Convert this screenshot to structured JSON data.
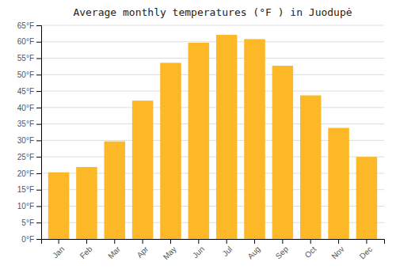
{
  "chart_data": {
    "type": "bar",
    "title": "Average monthly temperatures (°F ) in Juodupė",
    "categories": [
      "Jan",
      "Feb",
      "Mar",
      "Apr",
      "May",
      "Jun",
      "Jul",
      "Aug",
      "Sep",
      "Oct",
      "Nov",
      "Dec"
    ],
    "values": [
      20.3,
      21.9,
      29.7,
      42.1,
      53.6,
      59.7,
      62.1,
      60.8,
      52.7,
      43.7,
      33.8,
      25.0
    ],
    "color": "#FDB827",
    "ylim": [
      0,
      65
    ],
    "yticks": [
      {
        "value": 0,
        "label": "0°F"
      },
      {
        "value": 5,
        "label": "5°F"
      },
      {
        "value": 10,
        "label": "10°F"
      },
      {
        "value": 15,
        "label": "15°F"
      },
      {
        "value": 20,
        "label": "20°F"
      },
      {
        "value": 25,
        "label": "25°F"
      },
      {
        "value": 30,
        "label": "30°F"
      },
      {
        "value": 35,
        "label": "35°F"
      },
      {
        "value": 40,
        "label": "40°F"
      },
      {
        "value": 45,
        "label": "45°F"
      },
      {
        "value": 50,
        "label": "50°F"
      },
      {
        "value": 55,
        "label": "55°F"
      },
      {
        "value": 60,
        "label": "60°F"
      },
      {
        "value": 65,
        "label": "65°F"
      }
    ],
    "grid": true
  }
}
